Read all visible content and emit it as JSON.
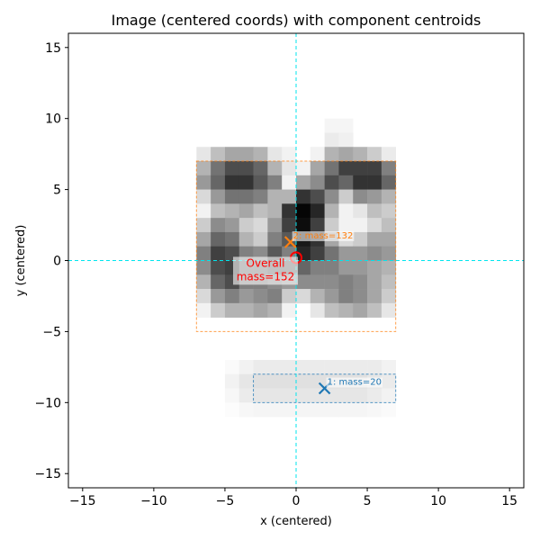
{
  "chart_data": {
    "type": "heatmap",
    "title": "Image (centered coords) with component centroids",
    "xlabel": "x (centered)",
    "ylabel": "y (centered)",
    "xlim": [
      -16,
      16
    ],
    "ylim": [
      -16,
      16
    ],
    "xticks": [
      -15,
      -10,
      -5,
      0,
      5,
      10,
      15
    ],
    "yticks": [
      -15,
      -10,
      -5,
      0,
      5,
      10,
      15
    ],
    "xtick_labels": [
      "−15",
      "−10",
      "−5",
      "0",
      "5",
      "10",
      "15"
    ],
    "ytick_labels": [
      "−15",
      "−10",
      "−5",
      "0",
      "5",
      "10",
      "15"
    ],
    "grid": false,
    "colormap": "gray_r",
    "pixel_grid": {
      "x_start": -16,
      "y_top": 16,
      "cell": 1,
      "rows": [
        {
          "y": 9,
          "cells": [
            [
              2,
              0.04
            ],
            [
              3,
              0.04
            ]
          ]
        },
        {
          "y": 8,
          "cells": [
            [
              2,
              0.08
            ],
            [
              3,
              0.06
            ]
          ]
        },
        {
          "y": 7,
          "cells": [
            [
              -7,
              0.1
            ],
            [
              -6,
              0.25
            ],
            [
              -5,
              0.35
            ],
            [
              -4,
              0.35
            ],
            [
              -3,
              0.3
            ],
            [
              -2,
              0.1
            ],
            [
              -1,
              0.05
            ],
            [
              1,
              0.05
            ],
            [
              2,
              0.3
            ],
            [
              3,
              0.35
            ],
            [
              4,
              0.3
            ],
            [
              5,
              0.2
            ],
            [
              6,
              0.08
            ]
          ]
        },
        {
          "y": 6,
          "cells": [
            [
              -7,
              0.3
            ],
            [
              -6,
              0.55
            ],
            [
              -5,
              0.7
            ],
            [
              -4,
              0.7
            ],
            [
              -3,
              0.6
            ],
            [
              -2,
              0.3
            ],
            [
              -1,
              0.1
            ],
            [
              0,
              0.05
            ],
            [
              1,
              0.35
            ],
            [
              2,
              0.55
            ],
            [
              3,
              0.75
            ],
            [
              4,
              0.75
            ],
            [
              5,
              0.75
            ],
            [
              6,
              0.5
            ]
          ]
        },
        {
          "y": 5,
          "cells": [
            [
              -7,
              0.4
            ],
            [
              -6,
              0.6
            ],
            [
              -5,
              0.8
            ],
            [
              -4,
              0.8
            ],
            [
              -3,
              0.65
            ],
            [
              -2,
              0.5
            ],
            [
              -1,
              0.05
            ],
            [
              0,
              0.35
            ],
            [
              1,
              0.45
            ],
            [
              2,
              0.7
            ],
            [
              3,
              0.6
            ],
            [
              4,
              0.8
            ],
            [
              5,
              0.8
            ],
            [
              6,
              0.6
            ]
          ]
        },
        {
          "y": 4,
          "cells": [
            [
              -7,
              0.15
            ],
            [
              -6,
              0.4
            ],
            [
              -5,
              0.55
            ],
            [
              -4,
              0.55
            ],
            [
              -3,
              0.5
            ],
            [
              -2,
              0.3
            ],
            [
              -1,
              0.3
            ],
            [
              0,
              0.8
            ],
            [
              1,
              0.7
            ],
            [
              2,
              0.45
            ],
            [
              3,
              0.2
            ],
            [
              4,
              0.45
            ],
            [
              5,
              0.4
            ],
            [
              6,
              0.3
            ]
          ]
        },
        {
          "y": 3,
          "cells": [
            [
              -7,
              0.05
            ],
            [
              -6,
              0.25
            ],
            [
              -5,
              0.3
            ],
            [
              -4,
              0.35
            ],
            [
              -3,
              0.25
            ],
            [
              -2,
              0.3
            ],
            [
              -1,
              0.8
            ],
            [
              0,
              0.98
            ],
            [
              1,
              0.85
            ],
            [
              2,
              0.3
            ],
            [
              3,
              0.05
            ],
            [
              4,
              0.1
            ],
            [
              5,
              0.25
            ],
            [
              6,
              0.2
            ]
          ]
        },
        {
          "y": 2,
          "cells": [
            [
              -7,
              0.2
            ],
            [
              -6,
              0.45
            ],
            [
              -5,
              0.4
            ],
            [
              -4,
              0.2
            ],
            [
              -3,
              0.15
            ],
            [
              -2,
              0.4
            ],
            [
              -1,
              0.75
            ],
            [
              0,
              0.95
            ],
            [
              1,
              0.75
            ],
            [
              2,
              0.2
            ],
            [
              3,
              0.05
            ],
            [
              4,
              0.05
            ],
            [
              5,
              0.15
            ],
            [
              6,
              0.25
            ]
          ]
        },
        {
          "y": 1,
          "cells": [
            [
              -7,
              0.35
            ],
            [
              -6,
              0.6
            ],
            [
              -5,
              0.55
            ],
            [
              -4,
              0.3
            ],
            [
              -3,
              0.2
            ],
            [
              -2,
              0.5
            ],
            [
              -1,
              0.65
            ],
            [
              0,
              0.9
            ],
            [
              1,
              0.8
            ],
            [
              2,
              0.35
            ],
            [
              3,
              0.15
            ],
            [
              4,
              0.2
            ],
            [
              5,
              0.35
            ],
            [
              6,
              0.35
            ]
          ]
        },
        {
          "y": 0,
          "cells": [
            [
              -7,
              0.5
            ],
            [
              -6,
              0.75
            ],
            [
              -5,
              0.7
            ],
            [
              -4,
              0.5
            ],
            [
              -3,
              0.45
            ],
            [
              -2,
              0.65
            ],
            [
              -1,
              0.5
            ],
            [
              0,
              0.85
            ],
            [
              1,
              0.75
            ],
            [
              2,
              0.55
            ],
            [
              3,
              0.4
            ],
            [
              4,
              0.4
            ],
            [
              5,
              0.45
            ],
            [
              6,
              0.4
            ]
          ]
        },
        {
          "y": -1,
          "cells": [
            [
              -7,
              0.45
            ],
            [
              -6,
              0.7
            ],
            [
              -5,
              0.75
            ],
            [
              -4,
              0.55
            ],
            [
              -3,
              0.55
            ],
            [
              -2,
              0.6
            ],
            [
              -1,
              0.6
            ],
            [
              0,
              0.6
            ],
            [
              1,
              0.5
            ],
            [
              2,
              0.5
            ],
            [
              3,
              0.4
            ],
            [
              4,
              0.4
            ],
            [
              5,
              0.35
            ],
            [
              6,
              0.3
            ]
          ]
        },
        {
          "y": -2,
          "cells": [
            [
              -7,
              0.3
            ],
            [
              -6,
              0.6
            ],
            [
              -5,
              0.7
            ],
            [
              -4,
              0.5
            ],
            [
              -3,
              0.5
            ],
            [
              -2,
              0.45
            ],
            [
              -1,
              0.4
            ],
            [
              0,
              0.45
            ],
            [
              1,
              0.45
            ],
            [
              2,
              0.45
            ],
            [
              3,
              0.5
            ],
            [
              4,
              0.45
            ],
            [
              5,
              0.35
            ],
            [
              6,
              0.25
            ]
          ]
        },
        {
          "y": -3,
          "cells": [
            [
              -7,
              0.15
            ],
            [
              -6,
              0.4
            ],
            [
              -5,
              0.5
            ],
            [
              -4,
              0.4
            ],
            [
              -3,
              0.45
            ],
            [
              -2,
              0.5
            ],
            [
              -1,
              0.2
            ],
            [
              0,
              0.15
            ],
            [
              1,
              0.3
            ],
            [
              2,
              0.4
            ],
            [
              3,
              0.5
            ],
            [
              4,
              0.45
            ],
            [
              5,
              0.35
            ],
            [
              6,
              0.2
            ]
          ]
        },
        {
          "y": -4,
          "cells": [
            [
              -7,
              0.05
            ],
            [
              -6,
              0.2
            ],
            [
              -5,
              0.3
            ],
            [
              -4,
              0.3
            ],
            [
              -3,
              0.35
            ],
            [
              -2,
              0.3
            ],
            [
              -1,
              0.05
            ],
            [
              1,
              0.1
            ],
            [
              2,
              0.25
            ],
            [
              3,
              0.3
            ],
            [
              4,
              0.35
            ],
            [
              5,
              0.25
            ],
            [
              6,
              0.1
            ]
          ]
        },
        {
          "y": -8,
          "cells": [
            [
              -5,
              0.02
            ],
            [
              -4,
              0.05
            ],
            [
              -3,
              0.08
            ],
            [
              -2,
              0.08
            ],
            [
              -1,
              0.08
            ],
            [
              0,
              0.08
            ],
            [
              1,
              0.08
            ],
            [
              2,
              0.08
            ],
            [
              3,
              0.08
            ],
            [
              4,
              0.08
            ],
            [
              5,
              0.08
            ],
            [
              6,
              0.05
            ]
          ]
        },
        {
          "y": -9,
          "cells": [
            [
              -5,
              0.05
            ],
            [
              -4,
              0.1
            ],
            [
              -3,
              0.12
            ],
            [
              -2,
              0.12
            ],
            [
              -1,
              0.12
            ],
            [
              0,
              0.12
            ],
            [
              1,
              0.12
            ],
            [
              2,
              0.12
            ],
            [
              3,
              0.12
            ],
            [
              4,
              0.12
            ],
            [
              5,
              0.1
            ],
            [
              6,
              0.08
            ]
          ]
        },
        {
          "y": -10,
          "cells": [
            [
              -5,
              0.03
            ],
            [
              -4,
              0.08
            ],
            [
              -3,
              0.1
            ],
            [
              -2,
              0.1
            ],
            [
              -1,
              0.1
            ],
            [
              0,
              0.1
            ],
            [
              1,
              0.1
            ],
            [
              2,
              0.1
            ],
            [
              3,
              0.1
            ],
            [
              4,
              0.1
            ],
            [
              5,
              0.08
            ],
            [
              6,
              0.05
            ]
          ]
        },
        {
          "y": -11,
          "cells": [
            [
              -5,
              0.01
            ],
            [
              -4,
              0.03
            ],
            [
              -3,
              0.04
            ],
            [
              -2,
              0.04
            ],
            [
              -1,
              0.04
            ],
            [
              0,
              0.04
            ],
            [
              1,
              0.04
            ],
            [
              2,
              0.04
            ],
            [
              3,
              0.04
            ],
            [
              4,
              0.04
            ],
            [
              5,
              0.03
            ],
            [
              6,
              0.02
            ]
          ]
        }
      ]
    },
    "crosshair": {
      "x": 0,
      "y": 0,
      "color": "#00e5ee"
    },
    "components": [
      {
        "label": "1: mass=20",
        "centroid": [
          2,
          -9
        ],
        "bbox": [
          -3,
          -10,
          7,
          -8
        ],
        "color": "#1f77b4"
      },
      {
        "label": "2: mass=132",
        "centroid": [
          -0.4,
          1.3
        ],
        "bbox": [
          -7,
          -5,
          7,
          7
        ],
        "color": "#ff7f0e"
      }
    ],
    "overall": {
      "label": [
        "Overall",
        "mass=152"
      ],
      "centroid": [
        0,
        0.2
      ],
      "color": "#ff0000"
    }
  }
}
